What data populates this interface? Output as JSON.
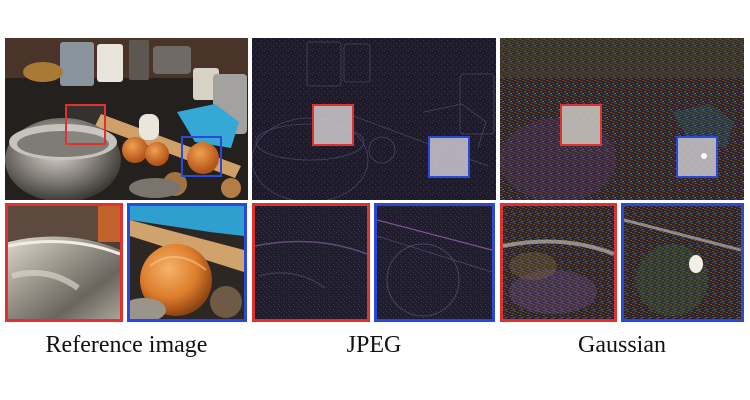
{
  "captions": {
    "reference": "Reference image",
    "jpeg": "JPEG",
    "gaussian": "Gaussian"
  },
  "colors": {
    "red_box": "#e03131",
    "blue_box": "#2b49d8",
    "jpeg_background": "#1f1c2c",
    "gaussian_background": "#2a2520"
  }
}
